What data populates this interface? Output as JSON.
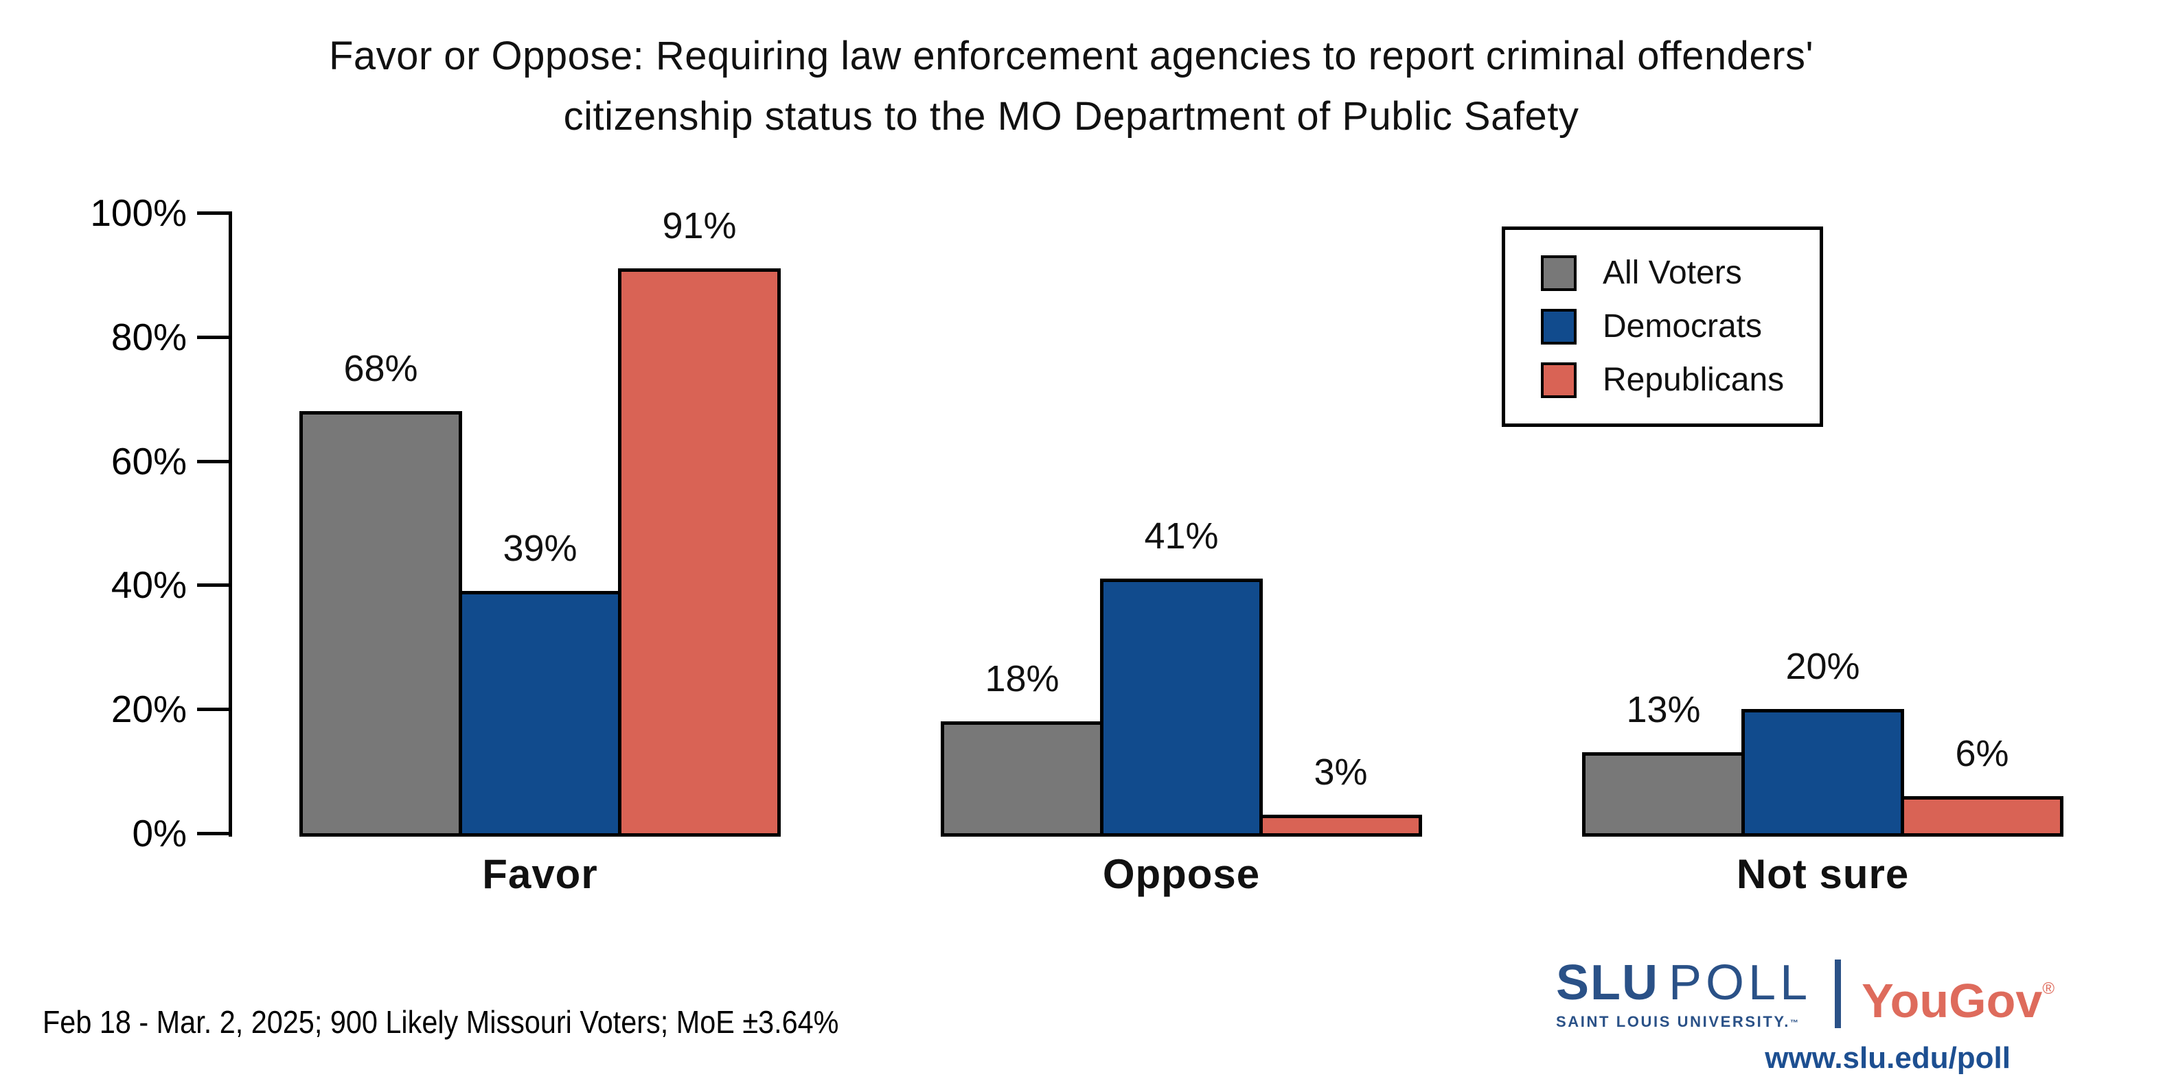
{
  "title": {
    "line1": "Favor or Oppose: Requiring law enforcement agencies to report criminal offenders'",
    "line2": "citizenship status to the MO Department of Public Safety"
  },
  "chart_data": {
    "type": "bar",
    "title": "Favor or Oppose: Requiring law enforcement agencies to report criminal offenders' citizenship status to the MO Department of Public Safety",
    "categories": [
      "Favor",
      "Oppose",
      "Not sure"
    ],
    "series": [
      {
        "name": "All Voters",
        "color": "#787878",
        "values": [
          68,
          18,
          13
        ]
      },
      {
        "name": "Democrats",
        "color": "#114B8D",
        "values": [
          39,
          41,
          20
        ]
      },
      {
        "name": "Republicans",
        "color": "#D96355",
        "values": [
          91,
          3,
          6
        ]
      }
    ],
    "value_labels": [
      [
        "68%",
        "18%",
        "13%"
      ],
      [
        "39%",
        "41%",
        "20%"
      ],
      [
        "91%",
        "3%",
        "6%"
      ]
    ],
    "ylim": [
      0,
      100
    ],
    "yticks": [
      0,
      20,
      40,
      60,
      80,
      100
    ],
    "ytick_labels": [
      "0%",
      "20%",
      "40%",
      "60%",
      "80%",
      "100%"
    ],
    "grid": false,
    "legend_position": "top-right",
    "bar_outline_color": "#000000",
    "source_note": "Feb 18 - Mar. 2, 2025; 900 Likely Missouri Voters; MoE ±3.64%"
  },
  "footer": {
    "note": "Feb 18 - Mar. 2, 2025; 900 Likely Missouri Voters; MoE ±3.64%"
  },
  "branding": {
    "slu_bold": "SLU",
    "slu_poll": "POLL",
    "slu_sub": "SAINT LOUIS UNIVERSITY.",
    "slu_tm": "™",
    "yougov": "YouGov",
    "yougov_reg": "®",
    "url": "www.slu.edu/poll",
    "slu_blue": "#2A5187",
    "yougov_red": "#DE6B5C",
    "url_blue": "#1D4F91"
  }
}
